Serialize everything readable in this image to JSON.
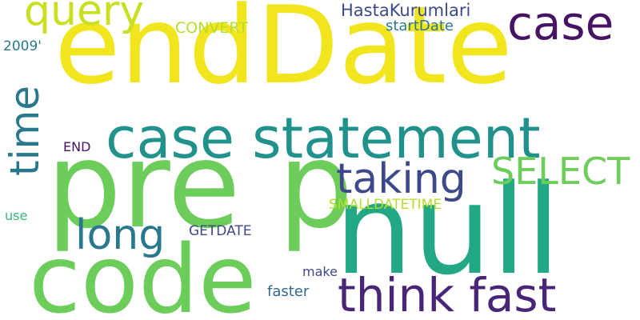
{
  "words": [
    {
      "text": "endDate",
      "color": "#f1e51d"
    },
    {
      "text": "pre p",
      "color": "#6ccd5a"
    },
    {
      "text": "null",
      "color": "#22a884"
    },
    {
      "text": "code",
      "color": "#6ccd5a"
    },
    {
      "text": "case statement",
      "color": "#21918c"
    },
    {
      "text": "think fast",
      "color": "#482576"
    },
    {
      "text": "query",
      "color": "#c8e020"
    },
    {
      "text": "case",
      "color": "#471365"
    },
    {
      "text": "taking",
      "color": "#3e4989"
    },
    {
      "text": "SELECT",
      "color": "#6ccd5a"
    },
    {
      "text": "long",
      "color": "#2a788e"
    },
    {
      "text": "time",
      "color": "#2a788e"
    },
    {
      "text": "HastaKurumlari",
      "color": "#3e4989"
    },
    {
      "text": "CONVERT",
      "color": "#b5de2b"
    },
    {
      "text": "startDate",
      "color": "#2a788e"
    },
    {
      "text": "2009'",
      "color": "#2a788e"
    },
    {
      "text": "END",
      "color": "#471365"
    },
    {
      "text": "SMALLDATETIME",
      "color": "#b5de2b"
    },
    {
      "text": "use",
      "color": "#35b779"
    },
    {
      "text": "GETDATE",
      "color": "#3e4989"
    },
    {
      "text": "make",
      "color": "#3e4989"
    },
    {
      "text": "faster",
      "color": "#31688e"
    }
  ]
}
